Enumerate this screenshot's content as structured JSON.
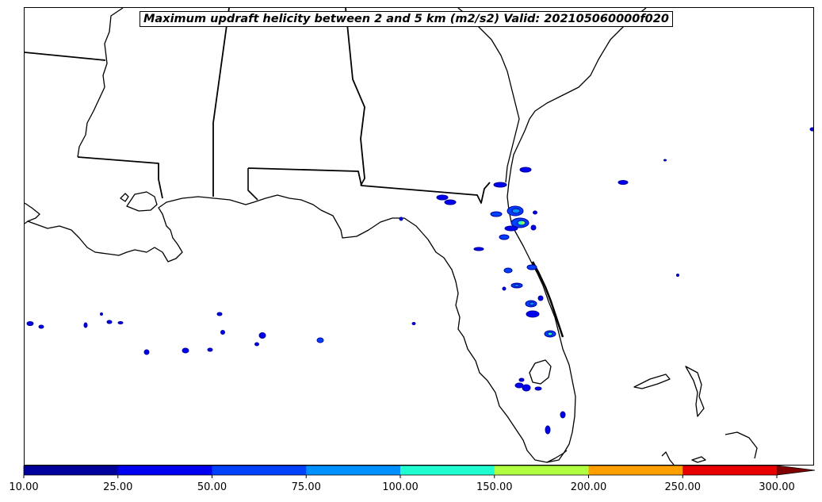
{
  "map": {
    "title": "Maximum updraft helicity between 2 and 5 km (m2/s2) Valid: 202105060000f020"
  },
  "colorbar": {
    "ticks": [
      "10.00",
      "25.00",
      "50.00",
      "75.00",
      "100.00",
      "150.00",
      "200.00",
      "250.00",
      "300.00"
    ],
    "bins": [
      {
        "from": 10,
        "to": 25,
        "color": "#00009c"
      },
      {
        "from": 25,
        "to": 50,
        "color": "#0000f0"
      },
      {
        "from": 50,
        "to": 75,
        "color": "#0040ff"
      },
      {
        "from": 75,
        "to": 100,
        "color": "#0090ff"
      },
      {
        "from": 100,
        "to": 150,
        "color": "#20ffd0"
      },
      {
        "from": 150,
        "to": 200,
        "color": "#b0ff40"
      },
      {
        "from": 200,
        "to": 250,
        "color": "#ffa000"
      },
      {
        "from": 250,
        "to": 300,
        "color": "#e80000"
      }
    ],
    "extend_color": "#800000",
    "extend": "max"
  }
}
